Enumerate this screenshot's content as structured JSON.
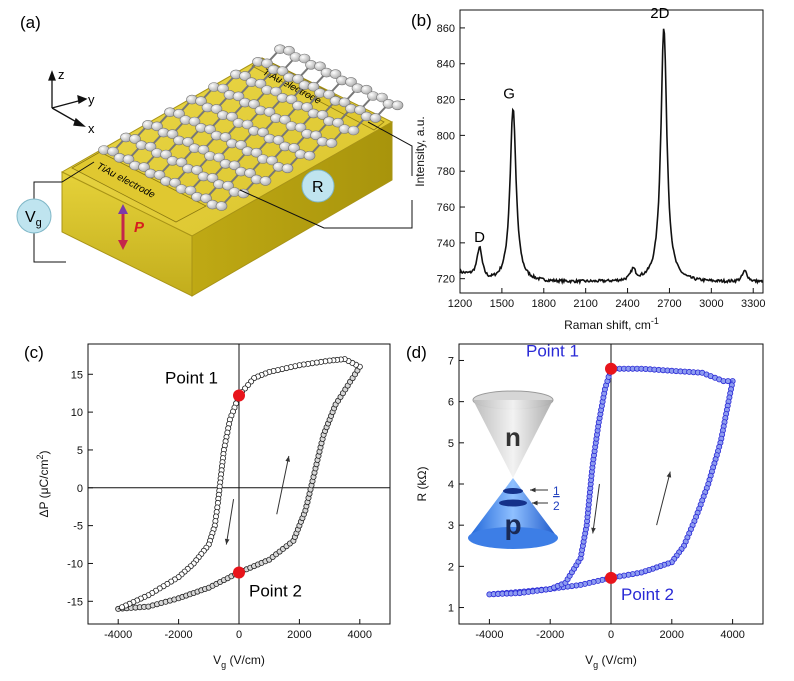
{
  "panels": {
    "a": {
      "label": "(a)",
      "axes": {
        "z": "z",
        "y": "y",
        "x": "x"
      },
      "electrode_top": "TiAu electrode",
      "electrode_bottom": "TiAu electrode",
      "vg": "V",
      "vg_sub": "g",
      "r": "R",
      "p": "P"
    },
    "b": {
      "label": "(b)"
    },
    "c": {
      "label": "(c)"
    },
    "d": {
      "label": "(d)"
    }
  },
  "chart_data": [
    {
      "id": "b",
      "type": "line",
      "xlabel": "Raman shift, cm",
      "xlabel_sup": "-1",
      "ylabel": "Intensity, a.u.",
      "xlim": [
        1200,
        3370
      ],
      "ylim": [
        712,
        870
      ],
      "xticks": [
        1200,
        1500,
        1800,
        2100,
        2400,
        2700,
        3000,
        3300
      ],
      "yticks": [
        720,
        740,
        760,
        780,
        800,
        820,
        840,
        860
      ],
      "baseline": 718,
      "peaks": [
        {
          "label": "D",
          "x": 1340,
          "height": 735
        },
        {
          "label": "G",
          "x": 1580,
          "height": 815
        },
        {
          "label": "",
          "x": 2440,
          "height": 724
        },
        {
          "label": "2D",
          "x": 2660,
          "height": 860
        },
        {
          "label": "",
          "x": 3240,
          "height": 724
        }
      ],
      "color": "#111111"
    },
    {
      "id": "c",
      "type": "scatter",
      "xlabel": "V",
      "xlabel_sub": "g",
      "xlabel_unit": " (V/cm)",
      "ylabel": "ΔP (μC/cm",
      "ylabel_sup": "2",
      "ylabel_end": ")",
      "xlim": [
        -5000,
        5000
      ],
      "ylim": [
        -18,
        19
      ],
      "xticks": [
        -4000,
        -2000,
        0,
        2000,
        4000
      ],
      "yticks": [
        -15,
        -10,
        -5,
        0,
        5,
        10,
        15
      ],
      "upper_branch": [
        [
          4000,
          16
        ],
        [
          3500,
          17
        ],
        [
          3000,
          16.8
        ],
        [
          2000,
          16.2
        ],
        [
          1000,
          15.3
        ],
        [
          500,
          14.5
        ],
        [
          0,
          12.2
        ],
        [
          -300,
          9
        ],
        [
          -500,
          5
        ],
        [
          -700,
          -2
        ],
        [
          -800,
          -5
        ],
        [
          -1000,
          -7.5
        ],
        [
          -1500,
          -10
        ],
        [
          -2000,
          -11.8
        ],
        [
          -3000,
          -14.2
        ],
        [
          -4000,
          -16
        ]
      ],
      "lower_branch": [
        [
          -4000,
          -16
        ],
        [
          -3000,
          -15.7
        ],
        [
          -2000,
          -14.6
        ],
        [
          -1000,
          -13.2
        ],
        [
          0,
          -11.2
        ],
        [
          1000,
          -9.5
        ],
        [
          1800,
          -7
        ],
        [
          2200,
          -3
        ],
        [
          2500,
          2
        ],
        [
          2800,
          7
        ],
        [
          3200,
          11
        ],
        [
          3600,
          13.5
        ],
        [
          4000,
          16
        ]
      ],
      "points": [
        {
          "label": "Point 1",
          "x": 0,
          "y": 12.2
        },
        {
          "label": "Point 2",
          "x": 0,
          "y": -11.2
        }
      ],
      "color": "#222222",
      "point_color": "#e8141b"
    },
    {
      "id": "d",
      "type": "scatter",
      "xlabel": "V",
      "xlabel_sub": "g",
      "xlabel_unit": " (V/cm)",
      "ylabel": "R (kΩ)",
      "xlim": [
        -5000,
        5000
      ],
      "ylim": [
        0.6,
        7.4
      ],
      "xticks": [
        -4000,
        -2000,
        0,
        2000,
        4000
      ],
      "yticks": [
        1,
        2,
        3,
        4,
        5,
        6,
        7
      ],
      "upper_branch": [
        [
          -4000,
          1.32
        ],
        [
          -3000,
          1.35
        ],
        [
          -2000,
          1.45
        ],
        [
          -1500,
          1.6
        ],
        [
          -1000,
          2.2
        ],
        [
          -800,
          3
        ],
        [
          -600,
          4.5
        ],
        [
          -400,
          5.5
        ],
        [
          -200,
          6.3
        ],
        [
          0,
          6.8
        ],
        [
          1000,
          6.8
        ],
        [
          2000,
          6.75
        ],
        [
          3000,
          6.7
        ],
        [
          3700,
          6.5
        ],
        [
          4000,
          6.5
        ]
      ],
      "lower_branch": [
        [
          4000,
          6.5
        ],
        [
          3600,
          5
        ],
        [
          3200,
          4
        ],
        [
          2800,
          3.2
        ],
        [
          2400,
          2.5
        ],
        [
          2000,
          2.1
        ],
        [
          1000,
          1.85
        ],
        [
          0,
          1.72
        ],
        [
          -1000,
          1.55
        ],
        [
          -2000,
          1.45
        ],
        [
          -3000,
          1.38
        ],
        [
          -4000,
          1.32
        ]
      ],
      "points": [
        {
          "label": "Point 1",
          "x": 0,
          "y": 6.8
        },
        {
          "label": "Point 2",
          "x": 0,
          "y": 1.72
        }
      ],
      "inset": {
        "top_label": "n",
        "bottom_label": "p",
        "mark_1": "1",
        "mark_2": "2"
      },
      "color": "#2a2ad6",
      "point_color": "#e8141b"
    }
  ]
}
